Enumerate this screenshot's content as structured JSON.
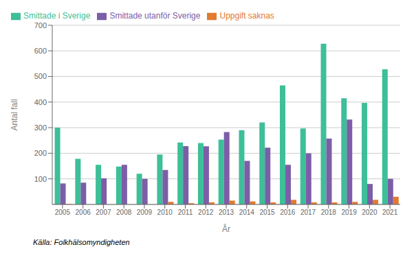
{
  "chart_data": {
    "type": "bar",
    "x_label": "År",
    "y_label": "Antal fall",
    "annotations": [
      "Källa: Folkhälsomyndigheten"
    ],
    "categories": [
      "2005",
      "2006",
      "2007",
      "2008",
      "2009",
      "2010",
      "2011",
      "2012",
      "2013",
      "2014",
      "2015",
      "2016",
      "2017",
      "2018",
      "2019",
      "2020",
      "2021"
    ],
    "series": [
      {
        "name": "Smittade i Sverige",
        "color": "#3dbf99",
        "values": [
          300,
          178,
          155,
          148,
          120,
          195,
          242,
          240,
          253,
          290,
          320,
          465,
          297,
          628,
          415,
          397,
          528
        ]
      },
      {
        "name": "Smittade utanför Sverige",
        "color": "#7b5ea7",
        "values": [
          82,
          85,
          102,
          155,
          100,
          135,
          228,
          227,
          283,
          170,
          222,
          155,
          200,
          257,
          332,
          80,
          100
        ]
      },
      {
        "name": "Uppgift saknas",
        "color": "#e07b30",
        "values": [
          2,
          0,
          0,
          0,
          0,
          10,
          5,
          8,
          15,
          12,
          8,
          18,
          8,
          8,
          10,
          18,
          30
        ]
      }
    ],
    "ylim": [
      0,
      700
    ],
    "yticks": [
      100,
      200,
      300,
      400,
      500,
      600,
      700
    ],
    "grid": true,
    "legend": "top"
  }
}
